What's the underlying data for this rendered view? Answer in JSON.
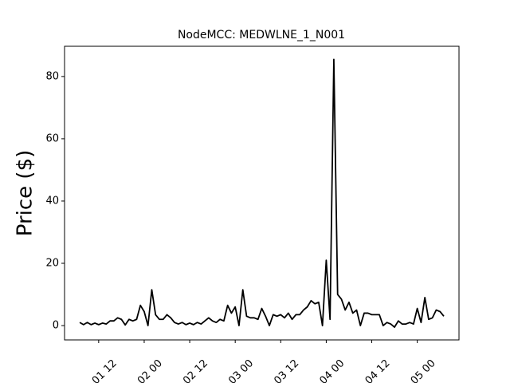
{
  "chart_data": {
    "type": "line",
    "title": "NodeMCC: MEDWLNE_1_N001",
    "y_label": "Price ($)",
    "x": [
      "09-01 07",
      "09-01 08",
      "09-01 09",
      "09-01 10",
      "09-01 11",
      "09-01 12",
      "09-01 13",
      "09-01 14",
      "09-01 15",
      "09-01 16",
      "09-01 17",
      "09-01 18",
      "09-01 19",
      "09-01 20",
      "09-01 21",
      "09-01 22",
      "09-01 23",
      "09-02 00",
      "09-02 01",
      "09-02 02",
      "09-02 03",
      "09-02 04",
      "09-02 05",
      "09-02 06",
      "09-02 07",
      "09-02 08",
      "09-02 09",
      "09-02 10",
      "09-02 11",
      "09-02 12",
      "09-02 13",
      "09-02 14",
      "09-02 15",
      "09-02 16",
      "09-02 17",
      "09-02 18",
      "09-02 19",
      "09-02 20",
      "09-02 21",
      "09-02 22",
      "09-02 23",
      "09-03 00",
      "09-03 01",
      "09-03 02",
      "09-03 03",
      "09-03 04",
      "09-03 05",
      "09-03 06",
      "09-03 07",
      "09-03 08",
      "09-03 09",
      "09-03 10",
      "09-03 11",
      "09-03 12",
      "09-03 13",
      "09-03 14",
      "09-03 15",
      "09-03 16",
      "09-03 17",
      "09-03 18",
      "09-03 19",
      "09-03 20",
      "09-03 21",
      "09-03 22",
      "09-03 23",
      "09-04 00",
      "09-04 01",
      "09-04 02",
      "09-04 03",
      "09-04 04",
      "09-04 05",
      "09-04 06",
      "09-04 07",
      "09-04 08",
      "09-04 09",
      "09-04 10",
      "09-04 11",
      "09-04 12",
      "09-04 13",
      "09-04 14",
      "09-04 15",
      "09-04 16",
      "09-04 17",
      "09-04 18",
      "09-04 19",
      "09-04 20",
      "09-04 21",
      "09-04 22",
      "09-04 23",
      "09-05 00",
      "09-05 01",
      "09-05 02",
      "09-05 03",
      "09-05 04",
      "09-05 05",
      "09-05 06",
      "09-05 07"
    ],
    "series": [
      {
        "name": "Price",
        "color": "#000000",
        "values": [
          1,
          0.3,
          1,
          0.3,
          0.8,
          0.3,
          0.8,
          0.5,
          1.5,
          1.5,
          2.5,
          2,
          0.2,
          2,
          1.5,
          2,
          6.5,
          4.5,
          0,
          11.5,
          3.5,
          2,
          2,
          3.5,
          2.5,
          1,
          0.5,
          1,
          0.3,
          0.8,
          0.3,
          1,
          0.5,
          1.5,
          2.5,
          1.5,
          1,
          2,
          1.5,
          6.5,
          4,
          6,
          0,
          11.5,
          3,
          2.5,
          2.5,
          2,
          5.5,
          3,
          0,
          3.5,
          3,
          3.5,
          2.5,
          4,
          2,
          3.5,
          3.5,
          5,
          6,
          8,
          7,
          7.5,
          0,
          21,
          2,
          85.5,
          10,
          8.5,
          5,
          7.5,
          4,
          5,
          0,
          4,
          4,
          3.5,
          3.5,
          3.5,
          0,
          1,
          0.5,
          -0.5,
          1.5,
          0.5,
          0.5,
          1,
          0.5,
          5.5,
          1,
          9,
          2,
          2.5,
          5,
          4.5,
          3
        ]
      }
    ],
    "xlim": [
      "09-01 03",
      "09-05 11"
    ],
    "xticks": [
      "09-01 12",
      "09-02 00",
      "09-02 12",
      "09-03 00",
      "09-03 12",
      "09-04 00",
      "09-04 12",
      "09-05 00"
    ],
    "ylim": [
      -4.6,
      89.7
    ],
    "yticks": [
      0,
      20,
      40,
      60,
      80
    ]
  }
}
